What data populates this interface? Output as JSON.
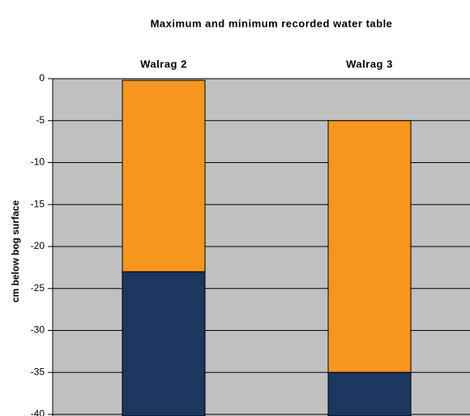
{
  "chart_data": {
    "type": "floating-bar",
    "title": "Maximum and minimum recorded water table",
    "y_label": "cm below bog surface",
    "categories": [
      "Walrag 2",
      "Walrag 3"
    ],
    "series": [
      {
        "color": "#f7961e",
        "values": [
          -0.2,
          -5
        ]
      },
      {
        "color": "#1b365f",
        "values": [
          -23,
          -35
        ]
      }
    ],
    "ylim": [
      -40,
      0
    ],
    "yticks": [
      0,
      -5,
      -10,
      -15,
      -20,
      -25,
      -30,
      -35,
      -40
    ],
    "grid": true,
    "plot_background": "#c0c0c0"
  }
}
